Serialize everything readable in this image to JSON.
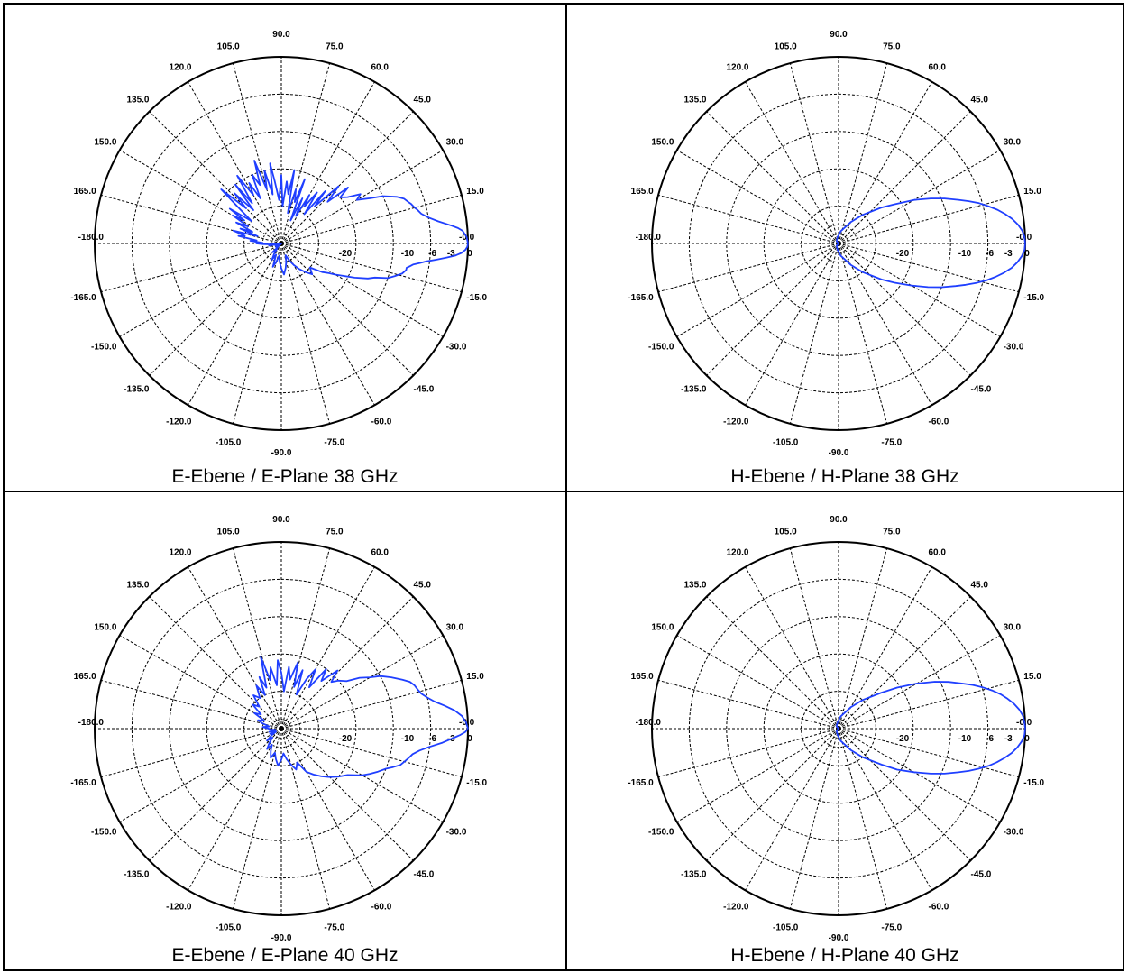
{
  "chart_data": [
    {
      "type": "polar",
      "title": "E-Ebene / E-Plane 38 GHz",
      "angle_labels": [
        "-0.0",
        "15.0",
        "30.0",
        "45.0",
        "60.0",
        "75.0",
        "90.0",
        "105.0",
        "120.0",
        "135.0",
        "150.0",
        "165.0",
        "-180.0",
        "-165.0",
        "-150.0",
        "-135.0",
        "-120.0",
        "-105.0",
        "-90.0",
        "-75.0",
        "-60.0",
        "-45.0",
        "-30.0",
        "-15.0"
      ],
      "radial_ticks": [
        "0",
        "-3",
        "-6",
        "-10",
        "-20"
      ],
      "radial_ticks_db": [
        0,
        -3,
        -6,
        -10,
        -20
      ],
      "rlim_db": [
        -30,
        0
      ],
      "series": [
        {
          "color": "#1f3fff",
          "angles_deg": [
            0,
            2,
            4,
            5,
            6,
            8,
            10,
            12,
            14,
            15,
            17,
            18,
            20,
            22,
            25,
            27,
            30,
            32,
            35,
            38,
            40,
            42,
            45,
            48,
            50,
            52,
            55,
            58,
            60,
            62,
            65,
            68,
            70,
            72,
            75,
            78,
            80,
            82,
            85,
            88,
            90,
            93,
            96,
            98,
            100,
            103,
            105,
            108,
            110,
            113,
            115,
            118,
            120,
            123,
            126,
            128,
            130,
            133,
            135,
            138,
            140,
            143,
            146,
            148,
            150,
            153,
            155,
            158,
            160,
            163,
            165,
            168,
            170,
            173,
            175,
            178,
            180,
            -178,
            -176,
            -173,
            -170,
            -168,
            -165,
            -160,
            -155,
            -150,
            -145,
            -140,
            -135,
            -130,
            -125,
            -120,
            -115,
            -110,
            -105,
            -100,
            -95,
            -90,
            -85,
            -80,
            -75,
            -70,
            -65,
            -60,
            -55,
            -50,
            -45,
            -40,
            -35,
            -32,
            -30,
            -28,
            -25,
            -22,
            -20,
            -18,
            -16,
            -14,
            -12,
            -11,
            -10,
            -9,
            -8,
            -7,
            -6,
            -5,
            -4,
            -3,
            -2,
            -1,
            0
          ],
          "gain_db": [
            0,
            -0.2,
            -0.8,
            -1.5,
            -2.5,
            -4.5,
            -6,
            -7,
            -7.5,
            -7.8,
            -8.2,
            -8.5,
            -9,
            -10,
            -12,
            -14,
            -16,
            -15,
            -17,
            -18,
            -16,
            -20,
            -17,
            -22,
            -19,
            -24,
            -20,
            -23,
            -21,
            -25,
            -22,
            -26,
            -19,
            -23,
            -21,
            -25,
            -18,
            -22,
            -20,
            -24,
            -19,
            -23,
            -20,
            -17,
            -22,
            -18,
            -21,
            -16,
            -20,
            -18,
            -22,
            -19,
            -21,
            -17,
            -22,
            -18,
            -23,
            -19,
            -22,
            -17,
            -21,
            -24,
            -20,
            -23,
            -21,
            -24,
            -22,
            -25,
            -23,
            -26,
            -22,
            -24,
            -23,
            -26,
            -25,
            -27,
            -26,
            -27,
            -28,
            -29,
            -28,
            -30,
            -29,
            -30,
            -29,
            -30,
            -29,
            -30,
            -28,
            -29,
            -28,
            -27,
            -28,
            -26,
            -27,
            -28,
            -27,
            -26,
            -25,
            -26,
            -27,
            -28,
            -27,
            -26,
            -25,
            -24,
            -23,
            -24,
            -22,
            -21,
            -20,
            -19,
            -17,
            -15,
            -14,
            -12,
            -11,
            -10,
            -9.5,
            -9.5,
            -9,
            -8.5,
            -7.5,
            -6.5,
            -5,
            -3.5,
            -2,
            -1,
            -0.4,
            -0.1,
            0
          ]
        }
      ]
    },
    {
      "type": "polar",
      "title": "H-Ebene / H-Plane 38 GHz",
      "angle_labels": [
        "-0.0",
        "15.0",
        "30.0",
        "45.0",
        "60.0",
        "75.0",
        "90.0",
        "105.0",
        "120.0",
        "135.0",
        "150.0",
        "165.0",
        "-180.0",
        "-165.0",
        "-150.0",
        "-135.0",
        "-120.0",
        "-105.0",
        "-90.0",
        "-75.0",
        "-60.0",
        "-45.0",
        "-30.0",
        "-15.0"
      ],
      "radial_ticks": [
        "0",
        "-3",
        "-6",
        "-10",
        "-20"
      ],
      "radial_ticks_db": [
        0,
        -3,
        -6,
        -10,
        -20
      ],
      "rlim_db": [
        -30,
        0
      ],
      "series": [
        {
          "color": "#1f3fff",
          "angles_deg": [
            0,
            2,
            4,
            6,
            8,
            10,
            12,
            14,
            16,
            18,
            20,
            23,
            26,
            30,
            35,
            40,
            50,
            60,
            80,
            100,
            130,
            160,
            180,
            -160,
            -130,
            -100,
            -80,
            -60,
            -50,
            -40,
            -35,
            -30,
            -26,
            -23,
            -20,
            -18,
            -16,
            -14,
            -12,
            -10,
            -8,
            -6,
            -4,
            -2,
            0
          ],
          "gain_db": [
            0,
            -0.1,
            -0.4,
            -1,
            -1.8,
            -2.8,
            -3.9,
            -5.2,
            -6.5,
            -8,
            -9.5,
            -11.5,
            -13.5,
            -16,
            -19,
            -21,
            -24,
            -26,
            -28,
            -29,
            -29.5,
            -30,
            -30,
            -30,
            -29.5,
            -29,
            -28,
            -26,
            -24,
            -21,
            -19,
            -16.5,
            -14,
            -12,
            -10,
            -8.5,
            -7,
            -5.5,
            -4.2,
            -3,
            -1.9,
            -1.1,
            -0.5,
            -0.1,
            0
          ]
        }
      ]
    },
    {
      "type": "polar",
      "title": "E-Ebene / E-Plane 40 GHz",
      "angle_labels": [
        "-0.0",
        "15.0",
        "30.0",
        "45.0",
        "60.0",
        "75.0",
        "90.0",
        "105.0",
        "120.0",
        "135.0",
        "150.0",
        "165.0",
        "-180.0",
        "-165.0",
        "-150.0",
        "-135.0",
        "-120.0",
        "-105.0",
        "-90.0",
        "-75.0",
        "-60.0",
        "-45.0",
        "-30.0",
        "-15.0"
      ],
      "radial_ticks": [
        "0",
        "-3",
        "-6",
        "-10",
        "-20"
      ],
      "radial_ticks_db": [
        0,
        -3,
        -6,
        -10,
        -20
      ],
      "rlim_db": [
        -30,
        0
      ],
      "series": [
        {
          "color": "#1f3fff",
          "angles_deg": [
            0,
            2,
            4,
            6,
            8,
            10,
            12,
            14,
            16,
            18,
            20,
            22,
            25,
            28,
            30,
            33,
            36,
            40,
            43,
            46,
            50,
            53,
            56,
            60,
            63,
            66,
            70,
            73,
            76,
            80,
            83,
            86,
            90,
            93,
            96,
            100,
            103,
            106,
            110,
            113,
            116,
            120,
            125,
            130,
            135,
            140,
            145,
            150,
            155,
            160,
            165,
            170,
            175,
            180,
            -175,
            -170,
            -165,
            -160,
            -155,
            -150,
            -145,
            -140,
            -135,
            -130,
            -125,
            -120,
            -115,
            -110,
            -105,
            -100,
            -95,
            -90,
            -85,
            -80,
            -75,
            -70,
            -65,
            -60,
            -55,
            -50,
            -45,
            -40,
            -35,
            -30,
            -27,
            -24,
            -21,
            -19,
            -17,
            -15,
            -13,
            -11,
            -9,
            -7,
            -5,
            -3,
            -2,
            -1,
            0
          ],
          "gain_db": [
            0,
            -0.3,
            -0.9,
            -2,
            -3.5,
            -5,
            -6,
            -6.8,
            -7.2,
            -7.5,
            -8,
            -9,
            -10.5,
            -12,
            -13.5,
            -15,
            -17,
            -18,
            -19,
            -17,
            -20,
            -18,
            -22,
            -19,
            -21,
            -24,
            -20,
            -23,
            -19,
            -22,
            -20,
            -24,
            -21,
            -19,
            -23,
            -20,
            -22,
            -18,
            -23,
            -21,
            -24,
            -22,
            -24,
            -23,
            -25,
            -24,
            -26,
            -25,
            -27,
            -26,
            -27,
            -28,
            -27,
            -28,
            -28,
            -29,
            -28,
            -29,
            -28,
            -29,
            -28,
            -27,
            -28,
            -27,
            -26,
            -27,
            -26,
            -25,
            -26,
            -25,
            -24,
            -25,
            -26,
            -25,
            -24,
            -23,
            -24,
            -22,
            -21,
            -20,
            -19,
            -18,
            -17,
            -15,
            -14,
            -13,
            -12,
            -11,
            -10,
            -9.5,
            -9,
            -8.5,
            -7.5,
            -6,
            -4,
            -2.2,
            -1.2,
            -0.4,
            0
          ]
        }
      ]
    },
    {
      "type": "polar",
      "title": "H-Ebene / H-Plane 40 GHz",
      "angle_labels": [
        "-0.0",
        "15.0",
        "30.0",
        "45.0",
        "60.0",
        "75.0",
        "90.0",
        "105.0",
        "120.0",
        "135.0",
        "150.0",
        "165.0",
        "-180.0",
        "-165.0",
        "-150.0",
        "-135.0",
        "-120.0",
        "-105.0",
        "-90.0",
        "-75.0",
        "-60.0",
        "-45.0",
        "-30.0",
        "-15.0"
      ],
      "radial_ticks": [
        "0",
        "-3",
        "-6",
        "-10",
        "-20"
      ],
      "radial_ticks_db": [
        0,
        -3,
        -6,
        -10,
        -20
      ],
      "rlim_db": [
        -30,
        0
      ],
      "series": [
        {
          "color": "#1f3fff",
          "angles_deg": [
            0,
            2,
            4,
            6,
            8,
            10,
            12,
            14,
            16,
            18,
            20,
            23,
            26,
            30,
            35,
            40,
            50,
            60,
            80,
            100,
            130,
            160,
            180,
            -160,
            -130,
            -100,
            -80,
            -60,
            -50,
            -40,
            -35,
            -30,
            -26,
            -23,
            -20,
            -18,
            -16,
            -14,
            -12,
            -10,
            -8,
            -6,
            -4,
            -2,
            0
          ],
          "gain_db": [
            0,
            -0.1,
            -0.3,
            -0.8,
            -1.5,
            -2.4,
            -3.4,
            -4.6,
            -5.9,
            -7.3,
            -8.8,
            -10.8,
            -12.8,
            -15.5,
            -18.5,
            -21,
            -24,
            -26,
            -28,
            -29,
            -29.5,
            -30,
            -30,
            -30,
            -29.5,
            -29,
            -28,
            -26,
            -24,
            -21,
            -18.5,
            -16,
            -13.5,
            -11.5,
            -9.5,
            -8,
            -6.6,
            -5.2,
            -4,
            -2.9,
            -1.9,
            -1.1,
            -0.5,
            -0.1,
            0
          ]
        }
      ]
    }
  ]
}
